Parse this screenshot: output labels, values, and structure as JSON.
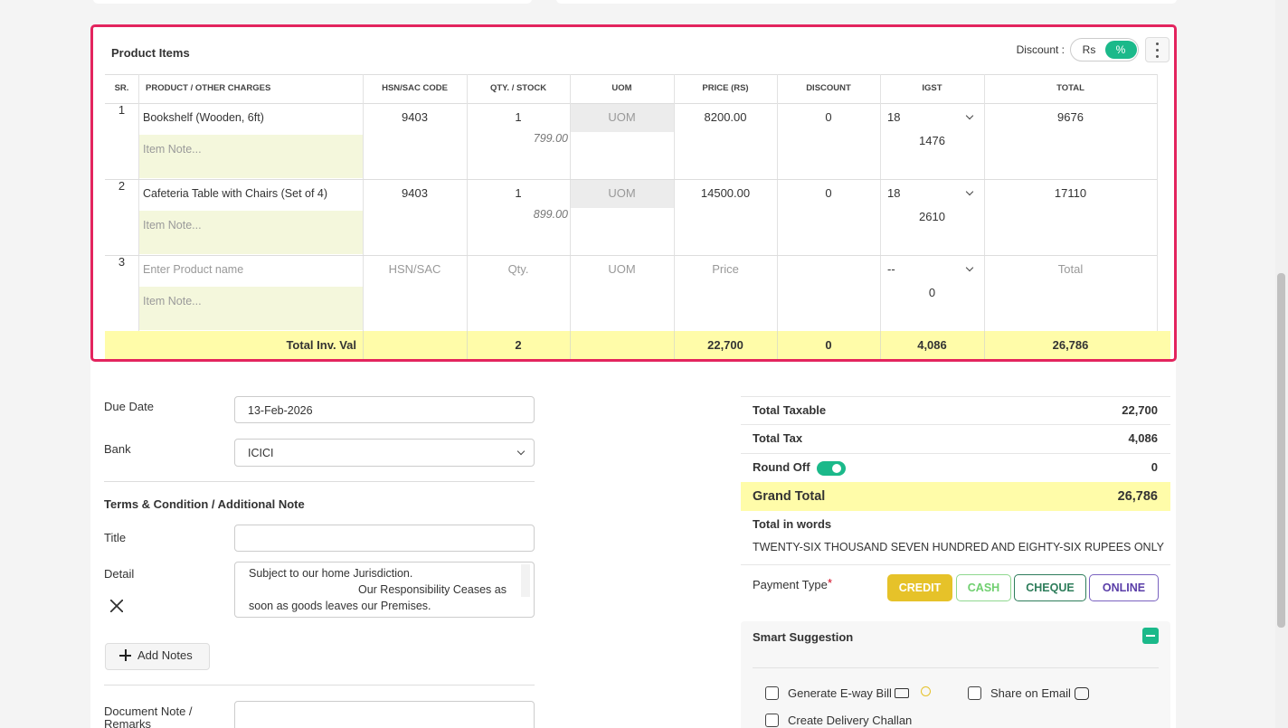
{
  "product_items": {
    "title": "Product Items",
    "discount_label": "Discount :",
    "discount_options": [
      "Rs",
      "%"
    ],
    "table": {
      "headers": [
        "SR.",
        "PRODUCT / OTHER CHARGES",
        "HSN/SAC CODE",
        "QTY. / STOCK",
        "UOM",
        "PRICE (RS)",
        "DISCOUNT",
        "IGST",
        "TOTAL"
      ],
      "rows": [
        {
          "sr": "1",
          "product": "Bookshelf (Wooden, 6ft)",
          "note": "Item Note...",
          "hsn": "9403",
          "qty": "1",
          "stock": "799.00",
          "uom": "UOM",
          "price": "8200.00",
          "discount": "0",
          "igst": "18",
          "igst_amount": "1476",
          "total": "9676"
        },
        {
          "sr": "2",
          "product": "Cafeteria Table with Chairs (Set of 4)",
          "note": "Item Note...",
          "hsn": "9403",
          "qty": "1",
          "stock": "899.00",
          "uom": "UOM",
          "price": "14500.00",
          "discount": "0",
          "igst": "18",
          "igst_amount": "2610",
          "total": "17110"
        },
        {
          "sr": "3",
          "product": "Enter Product name",
          "note": "Item Note...",
          "hsn": "HSN/SAC",
          "qty": "Qty.",
          "uom": "UOM",
          "price": "Price",
          "igst": "--",
          "igst_amount": "0",
          "total": "Total"
        }
      ],
      "totals": {
        "label": "Total Inv. Val",
        "qty": "2",
        "price": "22,700",
        "discount": "0",
        "igst": "4,086",
        "total": "26,786"
      }
    }
  },
  "form": {
    "due_date": {
      "label": "Due Date",
      "value": "13-Feb-2026"
    },
    "bank": {
      "label": "Bank",
      "value": "ICICI"
    },
    "terms_heading": "Terms & Condition / Additional Note",
    "title_label": "Title",
    "detail": {
      "label": "Detail",
      "lines": [
        "Subject to our home Jurisdiction.",
        "Our Responsibility Ceases as",
        "soon as goods leaves our Premises."
      ]
    },
    "add_notes": "Add Notes",
    "document_note_label": [
      "Document Note /",
      "Remarks"
    ]
  },
  "summary": {
    "total_taxable": {
      "label": "Total Taxable",
      "value": "22,700"
    },
    "total_tax": {
      "label": "Total Tax",
      "value": "4,086"
    },
    "round_off": {
      "label": "Round Off",
      "value": "0"
    },
    "grand_total": {
      "label": "Grand Total",
      "value": "26,786"
    },
    "words": {
      "label": "Total in words",
      "value": "TWENTY-SIX THOUSAND SEVEN HUNDRED AND EIGHTY-SIX RUPEES ONLY"
    },
    "payment": {
      "label": "Payment Type",
      "required": "*",
      "options": [
        "CREDIT",
        "CASH",
        "CHEQUE",
        "ONLINE"
      ]
    }
  },
  "smart_suggestion": {
    "title": "Smart Suggestion",
    "options": [
      "Generate E-way Bill",
      "Share on Email",
      "Create Delivery Challan"
    ]
  }
}
